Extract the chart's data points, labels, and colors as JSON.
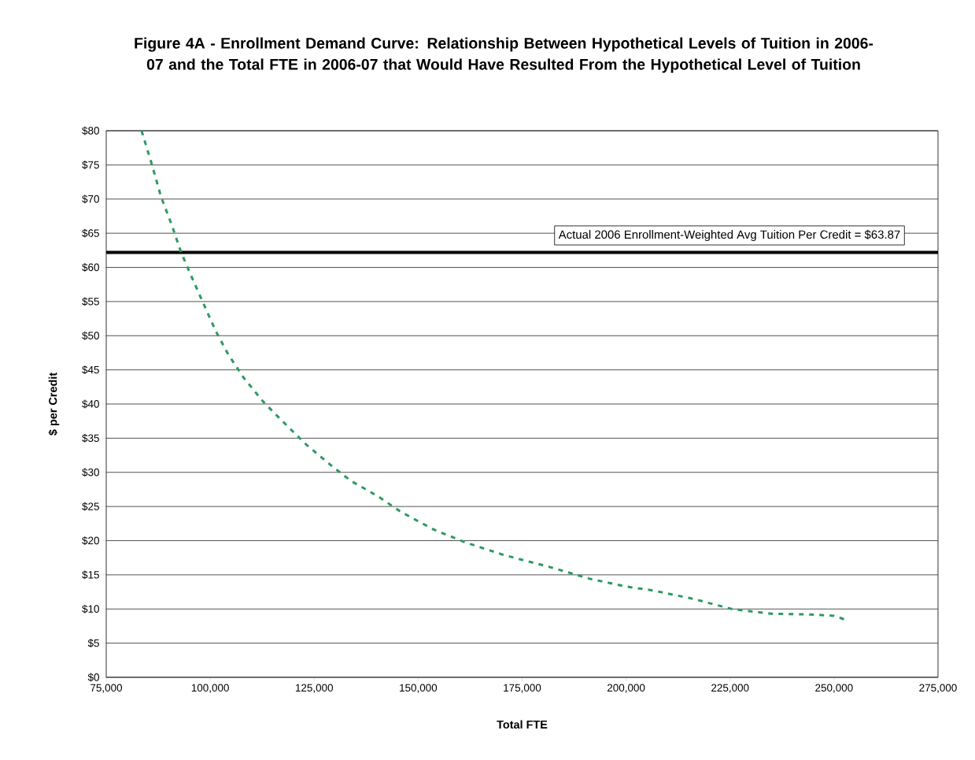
{
  "chart_data": {
    "type": "line",
    "title": "Figure 4A - Enrollment Demand Curve: Relationship Between Hypothetical Levels of Tuition in 2006-07 and the Total FTE in 2006-07 that Would Have Resulted From the Hypothetical Level of Tuition",
    "xlabel": "Total FTE",
    "ylabel": "$ per Credit",
    "series": [
      {
        "color": "#2e9a62",
        "line_style": "dashed",
        "marker": "none",
        "x": [
          83500,
          86000,
          88200,
          90700,
          93000,
          95400,
          98300,
          101300,
          104300,
          108100,
          112800,
          118500,
          123200,
          128900,
          133700,
          140300,
          145900,
          153500,
          161100,
          170600,
          181900,
          191400,
          199900,
          206500,
          216000,
          225400,
          234900,
          244300,
          250000,
          252900
        ],
        "values": [
          80,
          75,
          70.3,
          66.3,
          62.2,
          58.8,
          54.8,
          50.7,
          47.3,
          43.8,
          40.3,
          36.8,
          34.0,
          31.1,
          28.8,
          26.5,
          24.2,
          21.7,
          19.8,
          17.9,
          16.1,
          14.4,
          13.3,
          12.7,
          11.5,
          10.0,
          9.3,
          9.2,
          9.0,
          8.4
        ]
      }
    ],
    "ref_lines": [
      {
        "axis": "y",
        "value": 62.2,
        "color": "#000000",
        "line_style": "solid"
      }
    ],
    "annotations": [
      "Actual 2006 Enrollment-Weighted Avg Tuition Per Credit = $63.87"
    ],
    "xlim": [
      75000,
      275000
    ],
    "ylim": [
      0,
      80
    ],
    "xticks": [
      {
        "value": 75000,
        "label": "75,000"
      },
      {
        "value": 100000,
        "label": "100,000"
      },
      {
        "value": 125000,
        "label": "125,000"
      },
      {
        "value": 150000,
        "label": "150,000"
      },
      {
        "value": 175000,
        "label": "175,000"
      },
      {
        "value": 200000,
        "label": "200,000"
      },
      {
        "value": 225000,
        "label": "225,000"
      },
      {
        "value": 250000,
        "label": "250,000"
      },
      {
        "value": 275000,
        "label": "275,000"
      }
    ],
    "yticks": [
      {
        "value": 0,
        "label": "$0"
      },
      {
        "value": 5,
        "label": "$5"
      },
      {
        "value": 10,
        "label": "$10"
      },
      {
        "value": 15,
        "label": "$15"
      },
      {
        "value": 20,
        "label": "$20"
      },
      {
        "value": 25,
        "label": "$25"
      },
      {
        "value": 30,
        "label": "$30"
      },
      {
        "value": 35,
        "label": "$35"
      },
      {
        "value": 40,
        "label": "$40"
      },
      {
        "value": 45,
        "label": "$45"
      },
      {
        "value": 50,
        "label": "$50"
      },
      {
        "value": 55,
        "label": "$55"
      },
      {
        "value": 60,
        "label": "$60"
      },
      {
        "value": 65,
        "label": "$65"
      },
      {
        "value": 70,
        "label": "$70"
      },
      {
        "value": 75,
        "label": "$75"
      },
      {
        "value": 80,
        "label": "$80"
      }
    ],
    "grid": "y"
  }
}
